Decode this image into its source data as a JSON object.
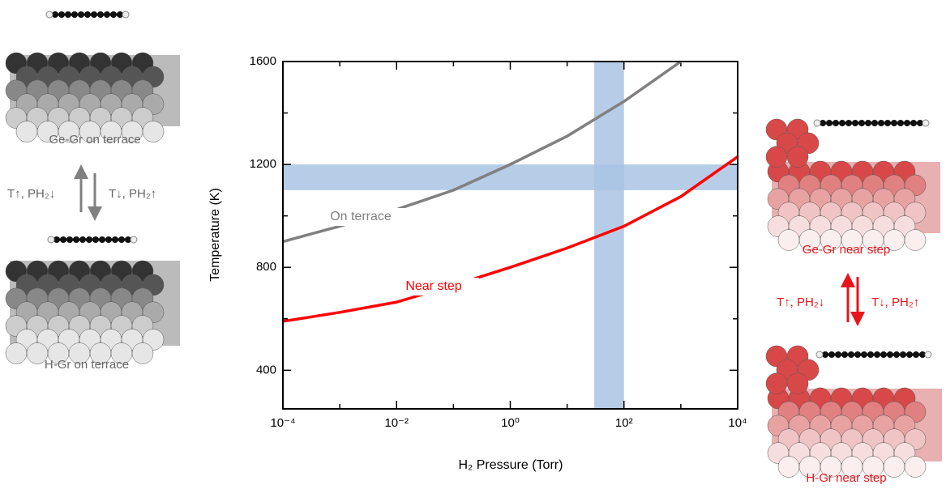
{
  "chart_data": {
    "type": "line",
    "x_label": "H₂ Pressure (Torr)",
    "y_label": "Temperature (K)",
    "xscale": "log",
    "xlim": [
      0.0001,
      10000
    ],
    "xticks": [
      {
        "value": 0.0001,
        "label": "10⁻⁴"
      },
      {
        "value": 0.01,
        "label": "10⁻²"
      },
      {
        "value": 1,
        "label": "10⁰"
      },
      {
        "value": 100,
        "label": "10²"
      },
      {
        "value": 10000,
        "label": "10⁴"
      }
    ],
    "x_minor_ticks": [
      0.001,
      0.1,
      10,
      1000
    ],
    "ylim": [
      250,
      1600
    ],
    "yticks": [
      400,
      800,
      1200,
      1600
    ],
    "y_minor_ticks": [
      600,
      1000,
      1400
    ],
    "x": [
      0.0001,
      0.001,
      0.01,
      0.1,
      1,
      10,
      100,
      1000,
      10000
    ],
    "series": [
      {
        "name": "On terrace",
        "color": "#808080",
        "values": [
          900,
          960,
          1025,
          1100,
          1200,
          1310,
          1445,
          1600,
          null
        ]
      },
      {
        "name": "Near step",
        "color": "#ff0000",
        "values": [
          590,
          625,
          665,
          730,
          800,
          875,
          960,
          1075,
          1230
        ]
      }
    ],
    "bands": {
      "color": "#a9c3e3",
      "y_range": [
        1100,
        1200
      ],
      "x_range": [
        30,
        100
      ]
    }
  },
  "panels": {
    "left": {
      "top": "Ge-Gr on terrace",
      "bottom": "H-Gr on terrace",
      "up": "T↑, PH₂↓",
      "down": "T↓, PH₂↑"
    },
    "right": {
      "top": "Ge-Gr near step",
      "bottom": "H-Gr near step",
      "up": "T↑, PH₂↓",
      "down": "T↓, PH₂↑"
    }
  }
}
